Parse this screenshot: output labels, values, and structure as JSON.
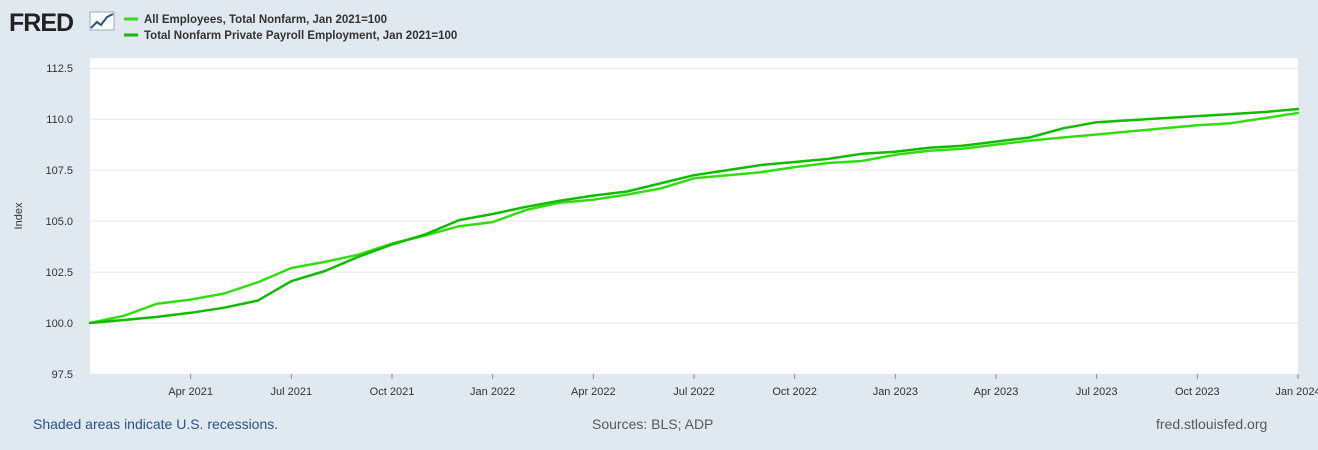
{
  "brand": {
    "name": "FRED"
  },
  "footer": {
    "recession_note": "Shaded areas indicate U.S. recessions.",
    "sources": "Sources: BLS; ADP",
    "site": "fred.stlouisfed.org"
  },
  "colors": {
    "background": "#e1e9f0",
    "plot_bg": "#ffffff",
    "grid": "#e6e6e6",
    "series1": "#33dd11",
    "series2": "#11bb00",
    "brand_dark": "#222222",
    "link_blue": "#29528c"
  },
  "chart_data": {
    "type": "line",
    "title": "",
    "xlabel": "",
    "ylabel": "Index",
    "ylim": [
      97.5,
      113.0
    ],
    "yticks": [
      97.5,
      100.0,
      102.5,
      105.0,
      107.5,
      110.0,
      112.5
    ],
    "ytick_labels": [
      "97.5",
      "100.0",
      "102.5",
      "105.0",
      "107.5",
      "110.0",
      "112.5"
    ],
    "x_range": [
      0,
      36
    ],
    "xticks": [
      {
        "x": 3,
        "label": "Apr 2021"
      },
      {
        "x": 6,
        "label": "Jul 2021"
      },
      {
        "x": 9,
        "label": "Oct 2021"
      },
      {
        "x": 12,
        "label": "Jan 2022"
      },
      {
        "x": 15,
        "label": "Apr 2022"
      },
      {
        "x": 18,
        "label": "Jul 2022"
      },
      {
        "x": 21,
        "label": "Oct 2022"
      },
      {
        "x": 24,
        "label": "Jan 2023"
      },
      {
        "x": 27,
        "label": "Apr 2023"
      },
      {
        "x": 30,
        "label": "Jul 2023"
      },
      {
        "x": 33,
        "label": "Oct 2023"
      },
      {
        "x": 36,
        "label": "Jan 2024"
      }
    ],
    "grid": true,
    "legend_position": "top-left",
    "series": [
      {
        "name": "All Employees, Total Nonfarm, Jan 2021=100",
        "values": [
          100.0,
          100.35,
          100.95,
          101.15,
          101.45,
          102.0,
          102.7,
          103.0,
          103.35,
          103.9,
          104.3,
          104.75,
          104.95,
          105.55,
          105.9,
          106.05,
          106.3,
          106.6,
          107.1,
          107.25,
          107.4,
          107.65,
          107.85,
          107.95,
          108.25,
          108.45,
          108.55,
          108.75,
          108.95,
          109.1,
          109.25,
          109.4,
          109.55,
          109.7,
          109.8,
          110.05,
          110.3
        ]
      },
      {
        "name": "Total Nonfarm Private Payroll Employment, Jan 2021=100",
        "values": [
          100.0,
          100.15,
          100.3,
          100.5,
          100.75,
          101.1,
          102.05,
          102.55,
          103.25,
          103.85,
          104.35,
          105.05,
          105.35,
          105.7,
          106.0,
          106.25,
          106.45,
          106.85,
          107.25,
          107.5,
          107.75,
          107.9,
          108.05,
          108.3,
          108.4,
          108.6,
          108.7,
          108.9,
          109.1,
          109.55,
          109.85,
          109.95,
          110.05,
          110.15,
          110.25,
          110.35,
          110.5
        ]
      }
    ]
  }
}
